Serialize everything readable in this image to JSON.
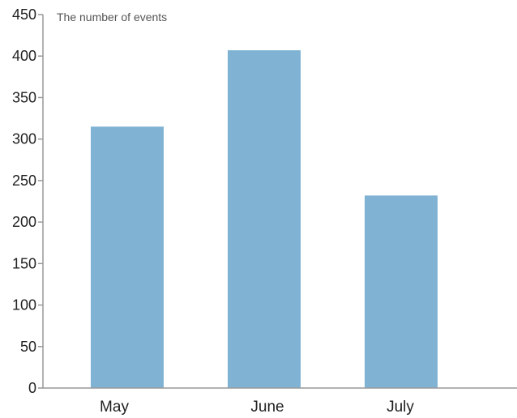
{
  "chart_data": {
    "type": "bar",
    "title": "",
    "xlabel": "",
    "ylabel": "The number of events",
    "categories": [
      "May",
      "June",
      "July"
    ],
    "values": [
      315,
      407,
      232
    ],
    "ylim": [
      0,
      450
    ],
    "yticks": [
      "0",
      "50",
      "100",
      "150",
      "200",
      "250",
      "300",
      "350",
      "400",
      "450"
    ],
    "grid": false,
    "legend": "none",
    "bar_color": "#80b3d3",
    "axis_color": "#999999"
  }
}
